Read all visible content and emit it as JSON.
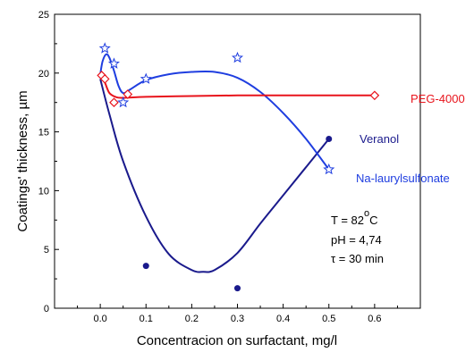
{
  "chart_data": {
    "type": "scatter",
    "title": "",
    "xlabel": "Concentracion on surfactant, mg/l",
    "ylabel": "Coatings' thickness, µm",
    "xlim": [
      -0.1,
      0.7
    ],
    "ylim": [
      0,
      25
    ],
    "x_ticks": [
      "0.0",
      "0.1",
      "0.2",
      "0.3",
      "0.4",
      "0.5",
      "0.6"
    ],
    "y_ticks": [
      "0",
      "5",
      "10",
      "15",
      "20",
      "25"
    ],
    "grid": false,
    "series": [
      {
        "name": "PEG-4000",
        "color": "#e8141c",
        "marker": "open-diamond",
        "points": [
          [
            0.003,
            19.8
          ],
          [
            0.01,
            19.5
          ],
          [
            0.03,
            17.5
          ],
          [
            0.06,
            18.2
          ],
          [
            0.6,
            18.1
          ]
        ],
        "fit_curve": [
          [
            0.0,
            19.9
          ],
          [
            0.01,
            19.2
          ],
          [
            0.02,
            18.3
          ],
          [
            0.035,
            17.95
          ],
          [
            0.05,
            17.9
          ],
          [
            0.1,
            17.98
          ],
          [
            0.2,
            18.05
          ],
          [
            0.3,
            18.1
          ],
          [
            0.4,
            18.1
          ],
          [
            0.5,
            18.1
          ],
          [
            0.6,
            18.1
          ]
        ]
      },
      {
        "name": "Veranol",
        "color": "#1a1a8c",
        "marker": "filled-circle",
        "points": [
          [
            0.1,
            3.6
          ],
          [
            0.3,
            1.7
          ],
          [
            0.5,
            14.4
          ]
        ],
        "fit_curve": [
          [
            0.0,
            19.5
          ],
          [
            0.02,
            16.5
          ],
          [
            0.05,
            12.5
          ],
          [
            0.1,
            7.8
          ],
          [
            0.15,
            4.6
          ],
          [
            0.2,
            3.25
          ],
          [
            0.225,
            3.1
          ],
          [
            0.25,
            3.25
          ],
          [
            0.3,
            4.7
          ],
          [
            0.35,
            7.2
          ],
          [
            0.4,
            9.6
          ],
          [
            0.45,
            12.0
          ],
          [
            0.5,
            14.4
          ]
        ]
      },
      {
        "name": "Na-laurylsulfonate",
        "color": "#1f3ee0",
        "marker": "open-star",
        "points": [
          [
            0.01,
            22.1
          ],
          [
            0.03,
            20.8
          ],
          [
            0.05,
            17.5
          ],
          [
            0.1,
            19.5
          ],
          [
            0.3,
            21.3
          ],
          [
            0.5,
            11.8
          ]
        ],
        "fit_curve": [
          [
            0.0,
            19.9
          ],
          [
            0.005,
            21.0
          ],
          [
            0.013,
            21.6
          ],
          [
            0.02,
            21.3
          ],
          [
            0.03,
            20.2
          ],
          [
            0.04,
            18.9
          ],
          [
            0.05,
            18.3
          ],
          [
            0.065,
            18.6
          ],
          [
            0.1,
            19.4
          ],
          [
            0.15,
            19.9
          ],
          [
            0.2,
            20.1
          ],
          [
            0.25,
            20.1
          ],
          [
            0.3,
            19.6
          ],
          [
            0.35,
            18.4
          ],
          [
            0.4,
            16.6
          ],
          [
            0.45,
            14.4
          ],
          [
            0.5,
            11.8
          ]
        ]
      }
    ],
    "annotations": {
      "temperature_prefix": "T = 82",
      "temperature_sup": "o",
      "temperature_unit": "C",
      "ph": "pH = 4,74",
      "time": "τ = 30 min"
    }
  }
}
